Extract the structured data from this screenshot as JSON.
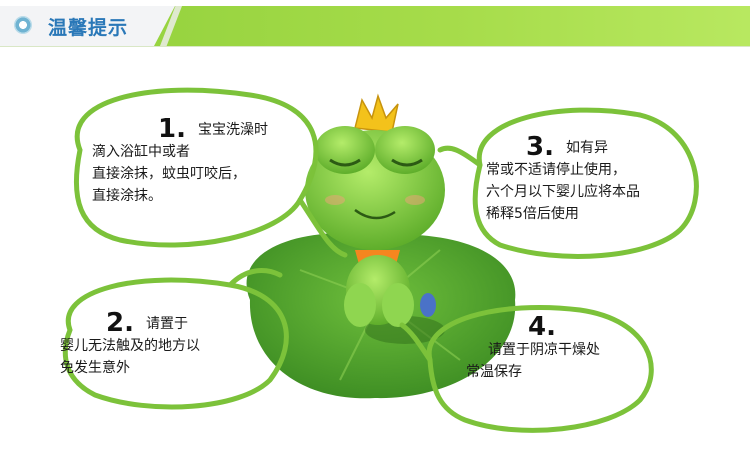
{
  "banner": {
    "title": "温馨提示",
    "icon": "target-circle-icon",
    "accent": "#9ed548",
    "title_color": "#2a78b8"
  },
  "tips": [
    {
      "number": "1.",
      "lines": [
        "宝宝洗澡时",
        "滴入浴缸中或者",
        "直接涂抹，蚊虫叮咬后，",
        "直接涂抹。"
      ]
    },
    {
      "number": "2.",
      "lines": [
        "请置于",
        "婴儿无法触及的地方以",
        "免发生意外"
      ]
    },
    {
      "number": "3.",
      "lines": [
        "如有异",
        "常或不适请停止使用，",
        "六个月以下婴儿应将本品",
        "稀释5倍后使用"
      ]
    },
    {
      "number": "4.",
      "lines": [
        "请置于阴凉干燥处",
        "常温保存"
      ]
    }
  ],
  "colors": {
    "bubble_stroke": "#7cc23a",
    "leaf": "#4e9e2c",
    "frog": "#7fcf3a"
  }
}
